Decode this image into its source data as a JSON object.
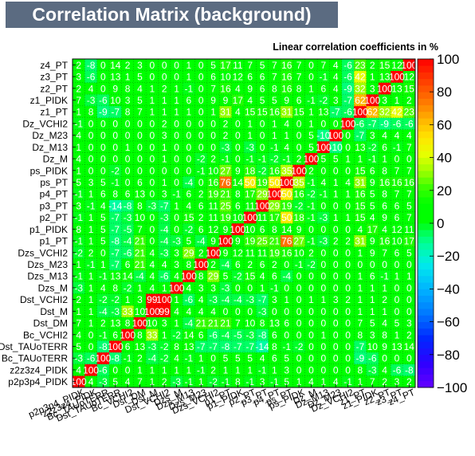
{
  "title": "Correlation Matrix (background)",
  "subtitle": "Linear correlation coefficients in %",
  "colors": {
    "title_bg": "#5b6b81",
    "title_fg": "#ffffff",
    "cell_text": "#ffffff",
    "palette": "ROOT rainbow (kBird-like)"
  },
  "chart_data": {
    "type": "heatmap",
    "title": "Correlation Matrix (background)",
    "zlabel": "Linear correlation coefficients in %",
    "zlim": [
      -100,
      100
    ],
    "colorbar_ticks": [
      "100",
      "80",
      "60",
      "40",
      "20",
      "0",
      "−20",
      "−40",
      "−60",
      "−80",
      "−100"
    ],
    "grid": true,
    "legend": "colorbar-right",
    "variables": [
      "p2p3p4_PIDK",
      "z2z3z4_PIDK",
      "Bc_TAUoTERR",
      "Dst_TAUoTERR",
      "Bc_VCHI2",
      "Dst_DM",
      "Dst_M",
      "Dst_VCHI2",
      "Dzs_M",
      "Dzs_M13",
      "Dzs_M23",
      "Dzs_VCHI2",
      "p1_PT",
      "p1_PIDK",
      "p2_PT",
      "p3_PT",
      "p4_PT",
      "ps_PT",
      "ps_PIDK",
      "Dz_M",
      "Dz_M13",
      "Dz_M23",
      "Dz_VCHI2",
      "z1_PT",
      "z1_PIDK",
      "z2_PT",
      "z3_PT",
      "z4_PT"
    ],
    "x_labels_visible": [
      "p2p3p4_PIDK",
      "z2z3z4_PIDK",
      "Bc_TAUoTERR",
      "Dst_TAUoTERR",
      "Bc_VCHI2",
      "Dst_DM",
      "Dst_M",
      "Dst_VCHI2",
      "Dzs_M",
      "Dzs_M13",
      "Dzs_M23",
      "Dzs_VCHI2",
      "p1_PT",
      "p1_PIDK",
      "p2_PT",
      "p3_PT",
      "p4_PT",
      "ps_PT",
      "ps_PIDK",
      "Dz_M",
      "Dz_M13",
      "Dz_M23",
      "Dz_VCHI2",
      "z1_PT",
      "z1_PIDK",
      "z2_PT",
      "z3_PT",
      "z4_PT"
    ],
    "values": [
      [
        100,
        4,
        -3,
        5,
        4,
        7,
        1,
        2,
        -3,
        -1,
        1,
        -2,
        -1,
        8,
        -1,
        3,
        -1,
        5,
        1,
        4,
        1,
        4,
        -1,
        1,
        7,
        2,
        3,
        2
      ],
      [
        4,
        100,
        -6,
        0,
        0,
        1,
        1,
        1,
        1,
        1,
        -1,
        2,
        1,
        1,
        1,
        -1,
        1,
        3,
        0,
        0,
        0,
        0,
        0,
        8,
        -3,
        4,
        -6,
        -8
      ],
      [
        -3,
        -6,
        100,
        -8,
        -1,
        2,
        -4,
        -2,
        4,
        -1,
        1,
        0,
        5,
        5,
        5,
        4,
        6,
        5,
        0,
        0,
        0,
        0,
        0,
        -9,
        -6,
        0,
        0,
        0
      ],
      [
        5,
        0,
        -8,
        100,
        6,
        13,
        -3,
        -2,
        8,
        13,
        -7,
        -7,
        -8,
        -7,
        -7,
        -14,
        8,
        -1,
        -2,
        0,
        0,
        0,
        0,
        -7,
        10,
        9,
        13,
        14
      ],
      [
        4,
        0,
        -1,
        6,
        100,
        8,
        33,
        1,
        -2,
        14,
        6,
        -6,
        -4,
        -5,
        -3,
        -8,
        6,
        0,
        0,
        0,
        1,
        0,
        0,
        8,
        3,
        8,
        1,
        2
      ],
      [
        7,
        1,
        2,
        13,
        8,
        100,
        10,
        3,
        1,
        -4,
        21,
        21,
        21,
        7,
        10,
        8,
        13,
        6,
        0,
        0,
        0,
        0,
        0,
        7,
        5,
        4,
        5,
        3
      ],
      [
        1,
        1,
        -4,
        -3,
        33,
        10,
        100,
        99,
        4,
        4,
        4,
        4,
        0,
        0,
        0,
        -3,
        0,
        0,
        0,
        0,
        0,
        0,
        0,
        1,
        1,
        1,
        0,
        0
      ],
      [
        2,
        1,
        -2,
        -2,
        1,
        3,
        99,
        100,
        1,
        -6,
        4,
        -3,
        -4,
        -4,
        -3,
        -7,
        3,
        1,
        0,
        1,
        1,
        3,
        2,
        1,
        1,
        2,
        0,
        0
      ],
      [
        -3,
        1,
        4,
        8,
        -2,
        1,
        4,
        1,
        100,
        4,
        3,
        3,
        -3,
        0,
        0,
        1,
        -1,
        0,
        0,
        0,
        0,
        0,
        0,
        1,
        1,
        1,
        0,
        0
      ],
      [
        -1,
        1,
        -1,
        13,
        14,
        -4,
        4,
        -6,
        4,
        100,
        8,
        29,
        5,
        -2,
        15,
        4,
        6,
        -4,
        0,
        0,
        0,
        0,
        0,
        1,
        6,
        -1,
        1,
        1
      ],
      [
        1,
        -1,
        1,
        -7,
        6,
        21,
        4,
        4,
        3,
        8,
        100,
        2,
        -4,
        6,
        2,
        6,
        2,
        0,
        -1,
        -2,
        0,
        0,
        0,
        0,
        0,
        0,
        0,
        0
      ],
      [
        -2,
        2,
        0,
        -7,
        -6,
        21,
        4,
        -3,
        3,
        29,
        2,
        100,
        9,
        12,
        11,
        11,
        19,
        16,
        10,
        2,
        0,
        0,
        0,
        1,
        9,
        7,
        6,
        5
      ],
      [
        -1,
        1,
        5,
        -8,
        -4,
        21,
        0,
        -4,
        -3,
        5,
        -4,
        9,
        100,
        9,
        19,
        25,
        21,
        76,
        27,
        -1,
        -3,
        2,
        2,
        31,
        9,
        16,
        10,
        17
      ],
      [
        8,
        1,
        5,
        -7,
        -5,
        7,
        0,
        -4,
        0,
        -2,
        6,
        12,
        9,
        100,
        10,
        6,
        8,
        14,
        9,
        0,
        0,
        0,
        0,
        4,
        17,
        4,
        12,
        11
      ],
      [
        -1,
        1,
        5,
        -7,
        -3,
        10,
        0,
        -3,
        0,
        15,
        2,
        11,
        19,
        10,
        100,
        11,
        17,
        50,
        18,
        -1,
        -3,
        1,
        1,
        15,
        4,
        9,
        6,
        7
      ],
      [
        3,
        -1,
        4,
        -14,
        -8,
        8,
        -3,
        -7,
        1,
        4,
        6,
        11,
        25,
        6,
        11,
        100,
        29,
        19,
        -2,
        -1,
        0,
        0,
        0,
        15,
        5,
        6,
        6,
        5
      ],
      [
        -1,
        1,
        6,
        8,
        6,
        13,
        0,
        3,
        -1,
        6,
        2,
        19,
        21,
        8,
        17,
        29,
        100,
        50,
        16,
        -2,
        -1,
        1,
        1,
        16,
        5,
        8,
        7,
        7
      ],
      [
        5,
        3,
        5,
        -1,
        0,
        6,
        0,
        1,
        0,
        -4,
        0,
        16,
        76,
        14,
        50,
        19,
        50,
        100,
        35,
        -1,
        4,
        1,
        4,
        31,
        9,
        16,
        16,
        16
      ],
      [
        1,
        0,
        0,
        -2,
        0,
        0,
        0,
        0,
        0,
        0,
        -1,
        10,
        27,
        9,
        18,
        -2,
        16,
        35,
        100,
        2,
        0,
        0,
        0,
        15,
        6,
        8,
        7,
        7
      ],
      [
        4,
        0,
        0,
        0,
        0,
        0,
        0,
        1,
        0,
        0,
        -2,
        2,
        -1,
        0,
        -1,
        -1,
        -2,
        -1,
        2,
        100,
        5,
        5,
        1,
        1,
        -1,
        1,
        0,
        0
      ],
      [
        1,
        0,
        0,
        0,
        1,
        0,
        0,
        1,
        0,
        0,
        0,
        0,
        -3,
        0,
        -3,
        0,
        -1,
        4,
        0,
        5,
        100,
        -10,
        0,
        13,
        -2,
        6,
        -1,
        7
      ],
      [
        4,
        0,
        0,
        0,
        0,
        0,
        0,
        3,
        0,
        0,
        0,
        0,
        2,
        0,
        1,
        0,
        1,
        1,
        0,
        5,
        -10,
        100,
        0,
        -7,
        3,
        4,
        4,
        4
      ],
      [
        -1,
        0,
        0,
        0,
        0,
        0,
        0,
        2,
        0,
        0,
        0,
        0,
        2,
        0,
        1,
        0,
        1,
        4,
        0,
        1,
        0,
        0,
        100,
        -6,
        -7,
        -9,
        -6,
        -6
      ],
      [
        1,
        8,
        -9,
        -7,
        8,
        7,
        1,
        1,
        1,
        1,
        0,
        1,
        31,
        4,
        15,
        15,
        16,
        31,
        15,
        1,
        13,
        -7,
        -6,
        100,
        62,
        32,
        42,
        23
      ],
      [
        7,
        -3,
        -6,
        10,
        3,
        5,
        1,
        1,
        1,
        6,
        0,
        9,
        9,
        17,
        4,
        5,
        5,
        9,
        6,
        -1,
        -2,
        3,
        -7,
        62,
        100,
        3,
        1,
        2
      ],
      [
        2,
        4,
        0,
        9,
        8,
        4,
        1,
        2,
        1,
        -1,
        0,
        7,
        16,
        4,
        9,
        6,
        8,
        16,
        8,
        1,
        6,
        4,
        -9,
        32,
        3,
        100,
        13,
        15
      ],
      [
        3,
        -6,
        0,
        13,
        1,
        5,
        0,
        0,
        0,
        1,
        0,
        6,
        10,
        12,
        6,
        6,
        7,
        16,
        7,
        0,
        -1,
        4,
        -6,
        42,
        1,
        13,
        100,
        12
      ],
      [
        2,
        -8,
        0,
        14,
        2,
        3,
        0,
        0,
        0,
        1,
        0,
        5,
        17,
        11,
        7,
        5,
        7,
        16,
        7,
        0,
        7,
        4,
        -6,
        23,
        2,
        15,
        12,
        100
      ]
    ]
  }
}
